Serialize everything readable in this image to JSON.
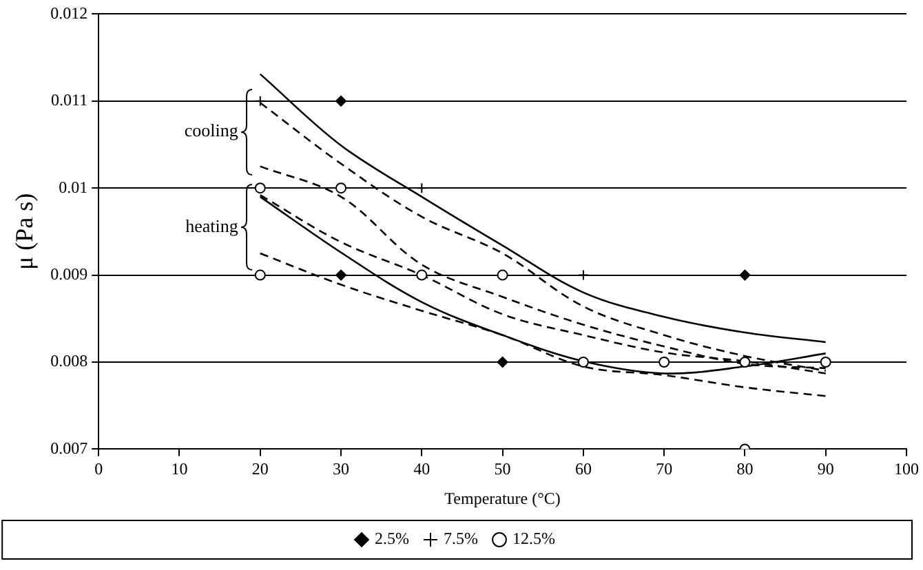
{
  "chart_data": {
    "type": "scatter",
    "xlabel": "Temperature (°C)",
    "ylabel": "μ (Pa s)",
    "xlim": [
      0,
      100
    ],
    "xticks": [
      0,
      10,
      20,
      30,
      40,
      50,
      60,
      70,
      80,
      90,
      100
    ],
    "ylim": [
      0.007,
      0.012
    ],
    "yticks": [
      0.007,
      0.008,
      0.009,
      0.01,
      0.011,
      0.012
    ],
    "grid": "y",
    "legend": "bottom",
    "annotations": [
      "cooling",
      "heating"
    ],
    "series": [
      {
        "name": "2.5%",
        "type": "scatter",
        "marker": "diamond",
        "color": "#000000",
        "x": [
          30,
          30,
          50,
          80
        ],
        "values": [
          0.011,
          0.009,
          0.008,
          0.009
        ]
      },
      {
        "name": "7.5%",
        "type": "scatter",
        "marker": "cross",
        "color": "#000000",
        "x": [
          20,
          40,
          60
        ],
        "values": [
          0.011,
          0.01,
          0.009
        ]
      },
      {
        "name": "12.5%",
        "type": "scatter",
        "marker": "circle",
        "color": "#000000",
        "x": [
          20,
          30,
          20,
          40,
          50,
          60,
          70,
          80,
          90,
          80
        ],
        "values": [
          0.01,
          0.01,
          0.009,
          0.009,
          0.009,
          0.008,
          0.008,
          0.008,
          0.008,
          0.007
        ]
      },
      {
        "type": "line",
        "marker": "none",
        "line_style": "solid",
        "color": "#000000",
        "x": [
          20,
          30,
          40,
          50,
          60,
          70,
          80,
          90
        ],
        "values": [
          0.01131,
          0.01049,
          0.0099,
          0.00934,
          0.0088,
          0.00852,
          0.00834,
          0.00823
        ]
      },
      {
        "type": "line",
        "marker": "none",
        "line_style": "dashed",
        "color": "#000000",
        "x": [
          20,
          30,
          40,
          50,
          60,
          70,
          80,
          90
        ],
        "values": [
          0.01098,
          0.01028,
          0.00967,
          0.00925,
          0.00864,
          0.00831,
          0.00807,
          0.0079
        ]
      },
      {
        "type": "line",
        "marker": "none",
        "line_style": "dashed",
        "color": "#000000",
        "x": [
          20,
          30,
          40,
          50,
          60,
          70,
          80,
          90
        ],
        "values": [
          0.01025,
          0.0099,
          0.00912,
          0.00875,
          0.00843,
          0.00818,
          0.00798,
          0.00793
        ]
      },
      {
        "type": "line",
        "marker": "none",
        "line_style": "dashed",
        "color": "#000000",
        "x": [
          20,
          30,
          40,
          50,
          60,
          70,
          80,
          90
        ],
        "values": [
          0.00992,
          0.00938,
          0.009,
          0.00855,
          0.00831,
          0.00811,
          0.00801,
          0.00787
        ]
      },
      {
        "type": "line",
        "marker": "none",
        "line_style": "solid",
        "color": "#000000",
        "x": [
          20,
          30,
          40,
          50,
          60,
          70,
          80,
          90
        ],
        "values": [
          0.0099,
          0.00926,
          0.00869,
          0.00831,
          0.00801,
          0.00787,
          0.00795,
          0.0081
        ]
      },
      {
        "type": "line",
        "marker": "none",
        "line_style": "dashed",
        "color": "#000000",
        "x": [
          20,
          30,
          40,
          50,
          60,
          70,
          80,
          90
        ],
        "values": [
          0.00925,
          0.00889,
          0.00859,
          0.00831,
          0.00795,
          0.00785,
          0.00771,
          0.00761
        ]
      }
    ]
  }
}
